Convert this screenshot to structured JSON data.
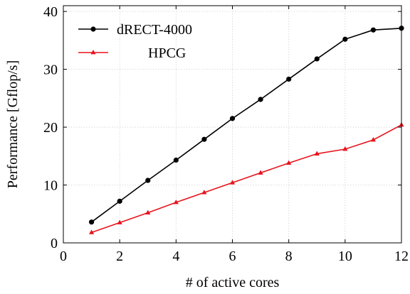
{
  "chart_data": {
    "type": "line",
    "title": "",
    "xlabel": "# of active cores",
    "ylabel": "Performance [Gflop/s]",
    "xlim": [
      0,
      12
    ],
    "ylim": [
      0,
      41
    ],
    "xticks": [
      0,
      2,
      4,
      6,
      8,
      10,
      12
    ],
    "yticks": [
      0,
      10,
      20,
      30,
      40
    ],
    "grid": true,
    "legend_position": "top-left",
    "x": [
      1,
      2,
      3,
      4,
      5,
      6,
      7,
      8,
      9,
      10,
      11,
      12
    ],
    "series": [
      {
        "name": "dRECT-4000",
        "color": "#000000",
        "marker": "circle",
        "values": [
          3.6,
          7.2,
          10.8,
          14.3,
          17.9,
          21.5,
          24.8,
          28.3,
          31.8,
          35.2,
          36.8,
          37.1
        ]
      },
      {
        "name": "HPCG",
        "color": "#e8141e",
        "marker": "triangle",
        "values": [
          1.8,
          3.5,
          5.2,
          7.0,
          8.7,
          10.4,
          12.1,
          13.8,
          15.4,
          16.2,
          17.8,
          20.4
        ]
      }
    ]
  }
}
